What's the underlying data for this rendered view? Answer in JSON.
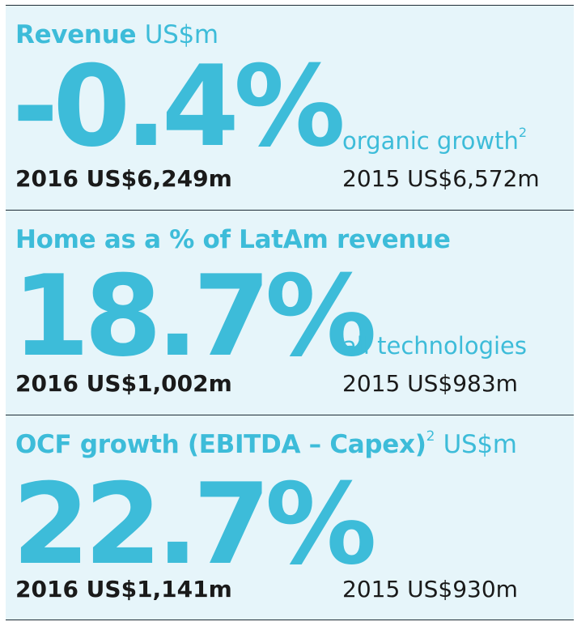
{
  "colors": {
    "accent": "#3dbcd9",
    "panel_background": "#e6f5fa",
    "text_dark": "#1a1a1a",
    "rule": "#1e2c35"
  },
  "panels": [
    {
      "heading_bold": "Revenue",
      "heading_light": "US$m",
      "heading_sup": "",
      "big_value": "-0.4%",
      "note": "organic growth",
      "note_sup": "2",
      "current": "2016 US$6,249m",
      "previous": "2015 US$6,572m"
    },
    {
      "heading_bold": "Home as a % of LatAm revenue",
      "heading_light": "",
      "heading_sup": "",
      "big_value": "18.7%",
      "note": "all technologies",
      "note_sup": "",
      "current": "2016 US$1,002m",
      "previous": "2015 US$983m"
    },
    {
      "heading_bold": "OCF growth (EBITDA – Capex)",
      "heading_light": "US$m",
      "heading_sup": "2",
      "big_value": "22.7%",
      "note": "",
      "note_sup": "",
      "current": "2016 US$1,141m",
      "previous": "2015 US$930m"
    }
  ]
}
